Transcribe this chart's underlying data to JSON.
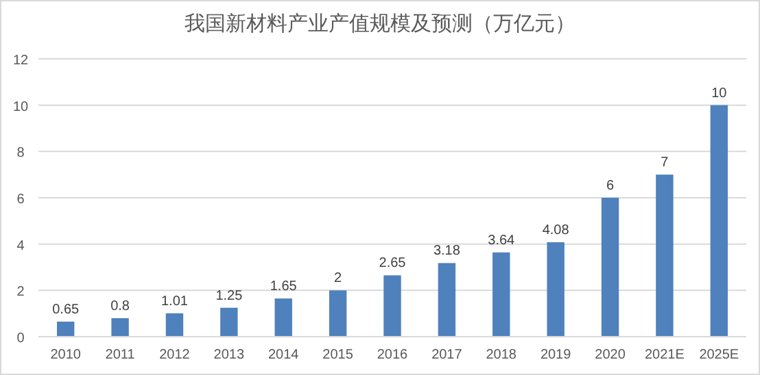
{
  "chart_data": {
    "type": "bar",
    "title": "我国新材料产业产值规模及预测（万亿元）",
    "categories": [
      "2010",
      "2011",
      "2012",
      "2013",
      "2014",
      "2015",
      "2016",
      "2017",
      "2018",
      "2019",
      "2020",
      "2021E",
      "2025E"
    ],
    "values": [
      0.65,
      0.8,
      1.01,
      1.25,
      1.65,
      2,
      2.65,
      3.18,
      3.64,
      4.08,
      6,
      7,
      10
    ],
    "color": "#4f81bd",
    "ylim": [
      0,
      12
    ],
    "yticks": [
      0,
      2,
      4,
      6,
      8,
      10,
      12
    ],
    "grid": "y",
    "data_labels": true
  }
}
